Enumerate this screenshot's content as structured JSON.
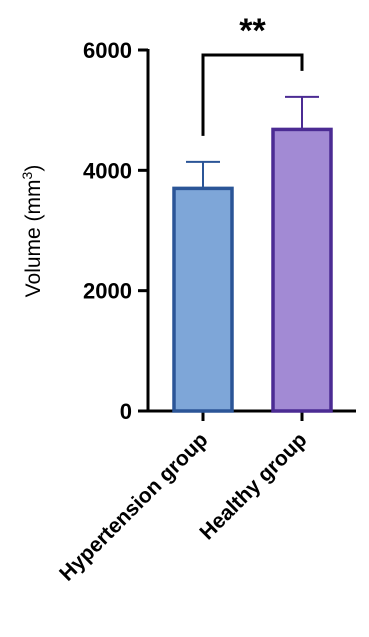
{
  "chart_data": {
    "type": "bar",
    "categories": [
      "Hypertension group",
      "Healthy group"
    ],
    "values": [
      3700,
      4680
    ],
    "error_upper": [
      4140,
      5220
    ],
    "ylim": [
      0,
      6000
    ],
    "yticks": [
      0,
      2000,
      4000,
      6000
    ],
    "ylabel": "Volume (mm",
    "ylabel_superscript": "3",
    "ylabel_close": ")",
    "significance": "**",
    "grid": false,
    "colors": {
      "fill": [
        "#7ea6d8",
        "#a28ad4"
      ],
      "stroke": [
        "#2b5597",
        "#4b2b93"
      ]
    }
  }
}
